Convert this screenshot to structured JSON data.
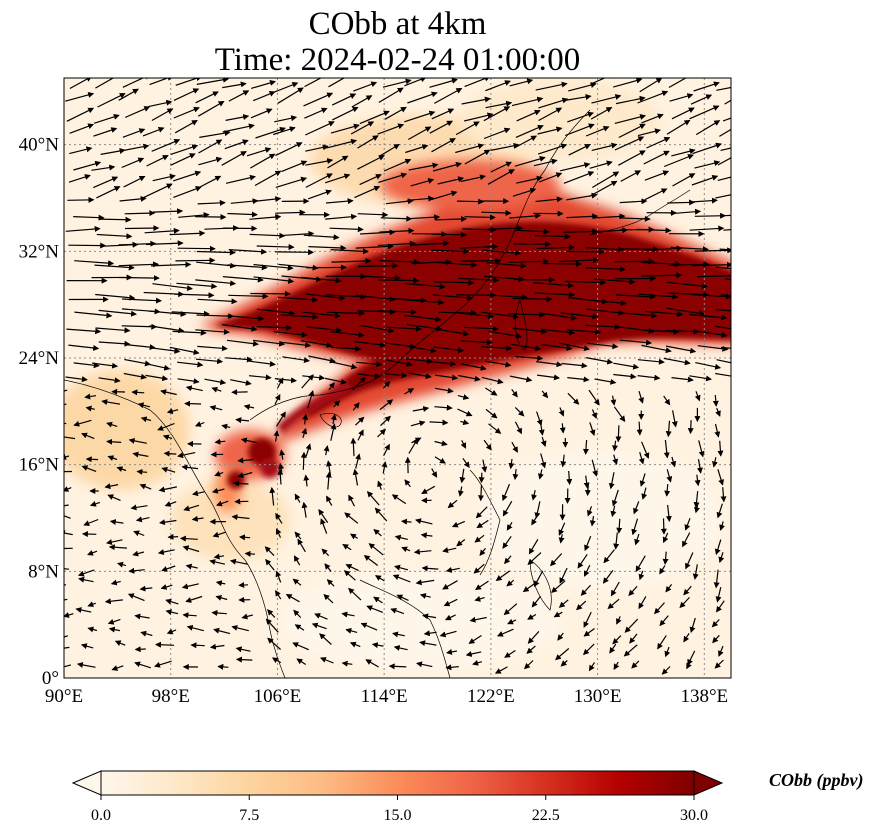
{
  "title": {
    "line1": "CObb at 4km",
    "line2": "Time: 2024-02-24 01:00:00"
  },
  "map": {
    "lon_range": [
      90,
      140
    ],
    "lat_range": [
      0,
      45
    ],
    "x_ticks": [
      {
        "value": 90,
        "label": "90°E"
      },
      {
        "value": 98,
        "label": "98°E"
      },
      {
        "value": 106,
        "label": "106°E"
      },
      {
        "value": 114,
        "label": "114°E"
      },
      {
        "value": 122,
        "label": "122°E"
      },
      {
        "value": 130,
        "label": "130°E"
      },
      {
        "value": 138,
        "label": "138°E"
      }
    ],
    "y_ticks": [
      {
        "value": 0,
        "label": "0°"
      },
      {
        "value": 8,
        "label": "8°N"
      },
      {
        "value": 16,
        "label": "16°N"
      },
      {
        "value": 24,
        "label": "24°N"
      },
      {
        "value": 32,
        "label": "32°N"
      },
      {
        "value": 40,
        "label": "40°N"
      }
    ],
    "gridlines": true,
    "wind_vectors": true
  },
  "colorbar": {
    "label": "CObb (ppbv)",
    "min": 0,
    "max": 30,
    "ticks": [
      "0.0",
      "7.5",
      "15.0",
      "22.5",
      "30.0"
    ],
    "colormap": [
      "#fff7ec",
      "#fee8c8",
      "#fdd49e",
      "#fdbb84",
      "#fc8d59",
      "#ef6548",
      "#d7301f",
      "#b30000",
      "#7f0000"
    ],
    "extend": "both"
  }
}
